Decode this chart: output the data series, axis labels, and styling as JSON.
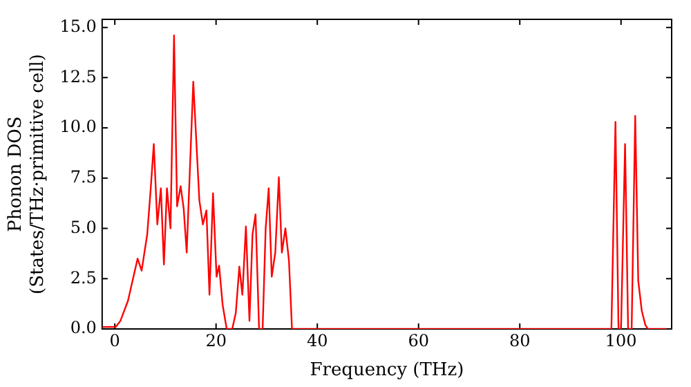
{
  "chart_data": {
    "type": "line",
    "xlabel": "Frequency (THz)",
    "ylabel": "Phonon DOS\n(States/THz·primitive cell)",
    "xlim": [
      -2.5,
      110
    ],
    "ylim": [
      0,
      15.4
    ],
    "xticks": [
      0,
      20,
      40,
      60,
      80,
      100
    ],
    "yticks": [
      {
        "value": 0,
        "label": "0.0"
      },
      {
        "value": 2.5,
        "label": "2.5"
      },
      {
        "value": 5,
        "label": "5.0"
      },
      {
        "value": 7.5,
        "label": "7.5"
      },
      {
        "value": 10,
        "label": "10.0"
      },
      {
        "value": 12.5,
        "label": "12.5"
      },
      {
        "value": 15,
        "label": "15.0"
      }
    ],
    "grid": false,
    "legend": false,
    "marker": "none",
    "line_style": "solid",
    "series": [
      {
        "color": "#ff0000",
        "x": [
          -2.4,
          0.2,
          1.1,
          2.6,
          4.5,
          5.3,
          6.4,
          7.1,
          7.7,
          8.4,
          9.1,
          9.7,
          10.3,
          11.0,
          11.7,
          12.3,
          13.0,
          13.6,
          14.2,
          15.5,
          16.7,
          17.4,
          18.1,
          18.7,
          19.4,
          20.1,
          20.6,
          21.3,
          22.1,
          23.2,
          23.9,
          24.6,
          25.2,
          25.9,
          26.6,
          27.2,
          27.8,
          28.5,
          29.2,
          29.8,
          30.4,
          31.0,
          31.7,
          32.4,
          33.0,
          33.7,
          34.4,
          35.0,
          98.1,
          98.9,
          99.5,
          100.0,
          100.8,
          101.4,
          102.1,
          102.8,
          103.4,
          104.1,
          104.8,
          105.3,
          109
        ],
        "values": [
          0.1,
          0.1,
          0.4,
          1.4,
          3.5,
          2.9,
          4.7,
          7.0,
          9.2,
          5.2,
          7.0,
          3.2,
          7.0,
          5.0,
          14.6,
          6.1,
          7.1,
          6.0,
          3.8,
          12.3,
          6.4,
          5.2,
          5.9,
          1.7,
          6.75,
          2.6,
          3.15,
          1.2,
          0,
          0,
          0.8,
          3.1,
          1.7,
          5.1,
          0.4,
          4.7,
          5.7,
          0,
          0,
          5.0,
          7.0,
          2.6,
          3.8,
          7.55,
          3.8,
          5.0,
          3.4,
          0,
          0,
          10.3,
          0,
          0,
          9.2,
          0,
          0,
          10.6,
          2.4,
          0.9,
          0.2,
          0,
          0
        ]
      }
    ]
  }
}
